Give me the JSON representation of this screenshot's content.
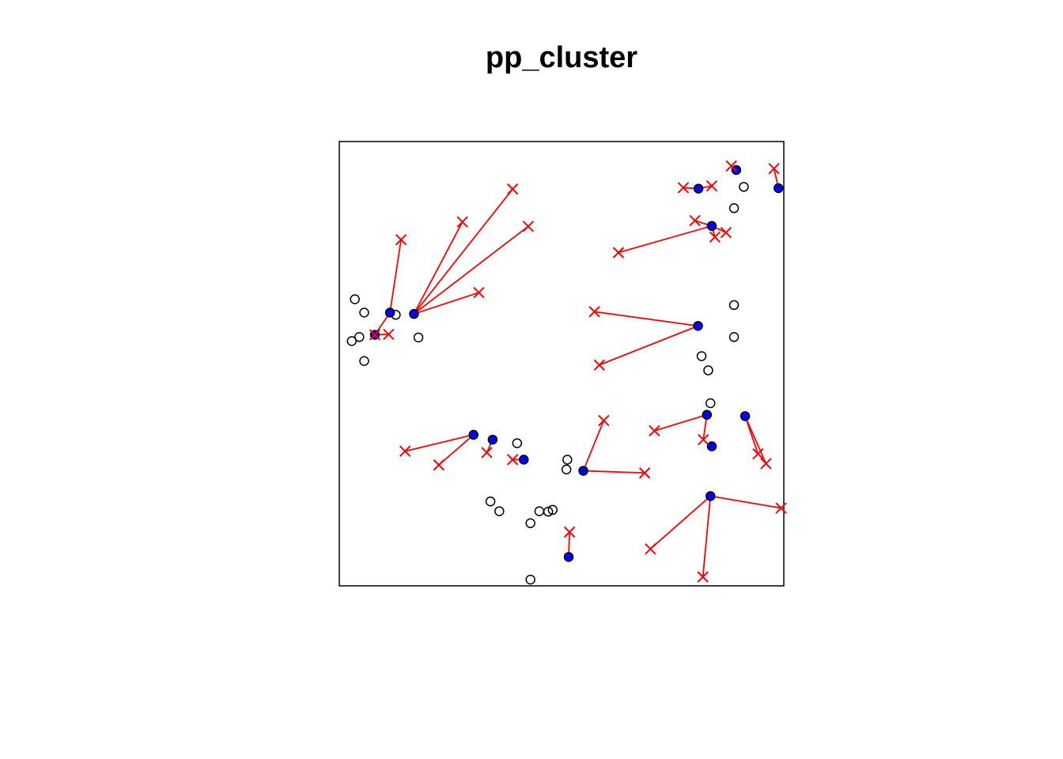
{
  "chart_data": {
    "type": "scatter",
    "title": "pp_cluster",
    "xlabel": "",
    "ylabel": "",
    "xlim": [
      0,
      1
    ],
    "ylim": [
      0,
      1
    ],
    "axes_shown": false,
    "grid": false,
    "colors": {
      "parent_fill": "#0000ff",
      "parent_stroke": "#000000",
      "offspring": "#ff0000",
      "link": "#ff0000",
      "background_point": "#000000",
      "frame": "#000000"
    },
    "background_points": [
      [
        0.035,
        0.645
      ],
      [
        0.056,
        0.615
      ],
      [
        0.028,
        0.551
      ],
      [
        0.045,
        0.56
      ],
      [
        0.056,
        0.506
      ],
      [
        0.127,
        0.61
      ],
      [
        0.178,
        0.559
      ],
      [
        0.4,
        0.321
      ],
      [
        0.511,
        0.262
      ],
      [
        0.34,
        0.19
      ],
      [
        0.36,
        0.168
      ],
      [
        0.45,
        0.168
      ],
      [
        0.47,
        0.167
      ],
      [
        0.43,
        0.141
      ],
      [
        0.48,
        0.171
      ],
      [
        0.43,
        0.014
      ],
      [
        0.513,
        0.284
      ],
      [
        0.815,
        0.517
      ],
      [
        0.83,
        0.485
      ],
      [
        0.888,
        0.56
      ],
      [
        0.888,
        0.632
      ],
      [
        0.835,
        0.411
      ],
      [
        0.888,
        0.85
      ],
      [
        0.91,
        0.898
      ]
    ],
    "parents": [
      {
        "x": 0.114,
        "y": 0.615,
        "offspring": [
          [
            0.139,
            0.779
          ],
          [
            0.08,
            0.565
          ]
        ]
      },
      {
        "x": 0.168,
        "y": 0.612,
        "offspring": [
          [
            0.277,
            0.819
          ],
          [
            0.39,
            0.893
          ],
          [
            0.425,
            0.809
          ],
          [
            0.314,
            0.66
          ]
        ]
      },
      {
        "x": 0.08,
        "y": 0.565,
        "offspring": [
          [
            0.111,
            0.566
          ]
        ]
      },
      {
        "x": 0.808,
        "y": 0.894,
        "offspring": [
          [
            0.774,
            0.896
          ],
          [
            0.838,
            0.9
          ]
        ]
      },
      {
        "x": 0.893,
        "y": 0.936,
        "offspring": [
          [
            0.882,
            0.945
          ]
        ]
      },
      {
        "x": 0.988,
        "y": 0.895,
        "offspring": [
          [
            0.978,
            0.939
          ]
        ]
      },
      {
        "x": 0.838,
        "y": 0.81,
        "offspring": [
          [
            0.8,
            0.822
          ],
          [
            0.87,
            0.795
          ],
          [
            0.845,
            0.785
          ],
          [
            0.628,
            0.75
          ]
        ]
      },
      {
        "x": 0.807,
        "y": 0.585,
        "offspring": [
          [
            0.574,
            0.617
          ],
          [
            0.585,
            0.497
          ]
        ]
      },
      {
        "x": 0.302,
        "y": 0.34,
        "offspring": [
          [
            0.148,
            0.303
          ],
          [
            0.224,
            0.272
          ]
        ]
      },
      {
        "x": 0.345,
        "y": 0.329,
        "offspring": [
          [
            0.332,
            0.3
          ]
        ]
      },
      {
        "x": 0.415,
        "y": 0.284,
        "offspring": [
          [
            0.39,
            0.284
          ]
        ]
      },
      {
        "x": 0.549,
        "y": 0.259,
        "offspring": [
          [
            0.595,
            0.372
          ],
          [
            0.687,
            0.254
          ]
        ]
      },
      {
        "x": 0.516,
        "y": 0.065,
        "offspring": [
          [
            0.518,
            0.121
          ]
        ]
      },
      {
        "x": 0.827,
        "y": 0.385,
        "offspring": [
          [
            0.709,
            0.349
          ],
          [
            0.819,
            0.329
          ]
        ]
      },
      {
        "x": 0.913,
        "y": 0.382,
        "offspring": [
          [
            0.942,
            0.297
          ],
          [
            0.96,
            0.275
          ]
        ]
      },
      {
        "x": 0.838,
        "y": 0.314,
        "offspring": []
      },
      {
        "x": 0.835,
        "y": 0.202,
        "offspring": [
          [
            0.7,
            0.083
          ],
          [
            0.818,
            0.02
          ],
          [
            0.994,
            0.175
          ]
        ]
      }
    ]
  }
}
